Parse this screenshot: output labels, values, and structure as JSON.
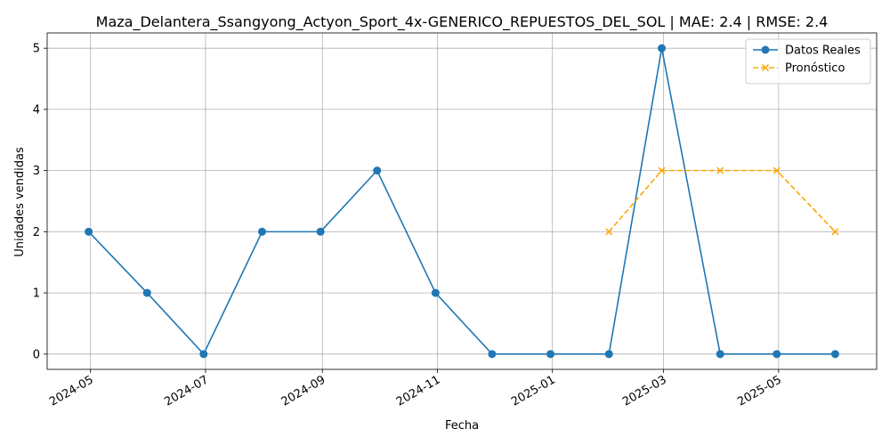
{
  "chart_data": {
    "type": "line",
    "title": "Maza_Delantera_Ssangyong_Actyon_Sport_4x-GENERICO_REPUESTOS_DEL_SOL | MAE: 2.4 | RMSE: 2.4",
    "xlabel": "Fecha",
    "ylabel": "Unidades vendidas",
    "xlim": [
      "2024-04-08",
      "2025-06-22"
    ],
    "ylim": [
      -0.25,
      5.25
    ],
    "x_ticks": [
      "2024-05",
      "2024-07",
      "2024-09",
      "2024-11",
      "2025-01",
      "2025-03",
      "2025-05"
    ],
    "x_tick_dates": [
      "2024-05-01",
      "2024-07-01",
      "2024-09-01",
      "2024-11-01",
      "2025-01-01",
      "2025-03-01",
      "2025-05-01"
    ],
    "y_ticks": [
      0,
      1,
      2,
      3,
      4,
      5
    ],
    "grid": true,
    "legend_position": "top-right",
    "series": [
      {
        "name": "Datos Reales",
        "color": "#1f77b4",
        "style": "solid",
        "marker": "circle",
        "x": [
          "2024-04-30",
          "2024-05-31",
          "2024-06-30",
          "2024-07-31",
          "2024-08-31",
          "2024-09-30",
          "2024-10-31",
          "2024-11-30",
          "2024-12-31",
          "2025-01-31",
          "2025-02-28",
          "2025-03-31",
          "2025-04-30",
          "2025-05-31"
        ],
        "y": [
          2,
          1,
          0,
          2,
          2,
          3,
          1,
          0,
          0,
          0,
          5,
          0,
          0,
          0
        ]
      },
      {
        "name": "Pronóstico",
        "color": "#ffa500",
        "style": "dashed",
        "marker": "x",
        "x": [
          "2025-01-31",
          "2025-02-28",
          "2025-03-31",
          "2025-04-30",
          "2025-05-31"
        ],
        "y": [
          2,
          3,
          3,
          3,
          2
        ]
      }
    ]
  }
}
